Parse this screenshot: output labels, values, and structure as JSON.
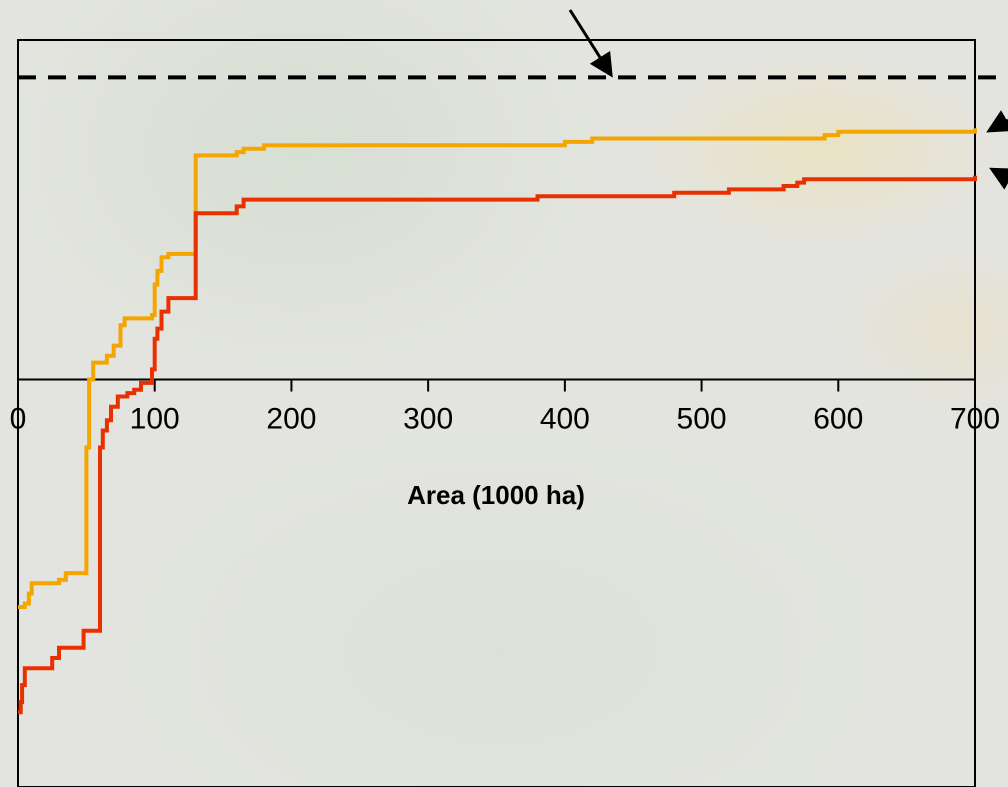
{
  "chart_data": {
    "type": "line",
    "step": true,
    "xlabel": "Area (1000 ha)",
    "ylabel": "",
    "title": "",
    "xlim": [
      0,
      700
    ],
    "ylim": [
      -1.2,
      1.0
    ],
    "x_ticks": [
      "0",
      "100",
      "200",
      "300",
      "400",
      "500",
      "600",
      "700"
    ],
    "grid": false,
    "reference_line": {
      "y": 0.89,
      "style": "dashed",
      "color": "#000000"
    },
    "series": [
      {
        "color": "#f5a500",
        "points": [
          [
            0,
            -0.67
          ],
          [
            5,
            -0.66
          ],
          [
            8,
            -0.63
          ],
          [
            10,
            -0.6
          ],
          [
            20,
            -0.6
          ],
          [
            30,
            -0.59
          ],
          [
            35,
            -0.57
          ],
          [
            50,
            -0.56
          ],
          [
            50,
            -0.2
          ],
          [
            52,
            0.0
          ],
          [
            55,
            0.05
          ],
          [
            58,
            0.05
          ],
          [
            65,
            0.07
          ],
          [
            70,
            0.1
          ],
          [
            75,
            0.13
          ],
          [
            75,
            0.16
          ],
          [
            78,
            0.18
          ],
          [
            90,
            0.18
          ],
          [
            95,
            0.18
          ],
          [
            98,
            0.19
          ],
          [
            100,
            0.21
          ],
          [
            100,
            0.28
          ],
          [
            102,
            0.32
          ],
          [
            105,
            0.36
          ],
          [
            110,
            0.36
          ],
          [
            110,
            0.37
          ],
          [
            118,
            0.37
          ],
          [
            130,
            0.37
          ],
          [
            130,
            0.66
          ],
          [
            155,
            0.66
          ],
          [
            160,
            0.67
          ],
          [
            165,
            0.68
          ],
          [
            175,
            0.68
          ],
          [
            180,
            0.69
          ],
          [
            215,
            0.69
          ],
          [
            400,
            0.7
          ],
          [
            420,
            0.71
          ],
          [
            480,
            0.71
          ],
          [
            590,
            0.72
          ],
          [
            600,
            0.73
          ],
          [
            700,
            0.74
          ]
        ]
      },
      {
        "color": "#e83000",
        "points": [
          [
            0,
            -0.98
          ],
          [
            2,
            -0.95
          ],
          [
            3,
            -0.9
          ],
          [
            5,
            -0.85
          ],
          [
            20,
            -0.85
          ],
          [
            25,
            -0.82
          ],
          [
            30,
            -0.79
          ],
          [
            40,
            -0.79
          ],
          [
            48,
            -0.74
          ],
          [
            50,
            -0.74
          ],
          [
            60,
            -0.74
          ],
          [
            60,
            -0.2
          ],
          [
            62,
            -0.15
          ],
          [
            65,
            -0.12
          ],
          [
            68,
            -0.08
          ],
          [
            73,
            -0.05
          ],
          [
            80,
            -0.04
          ],
          [
            85,
            -0.03
          ],
          [
            90,
            -0.01
          ],
          [
            95,
            -0.01
          ],
          [
            98,
            0.03
          ],
          [
            100,
            0.07
          ],
          [
            100,
            0.12
          ],
          [
            102,
            0.15
          ],
          [
            105,
            0.2
          ],
          [
            110,
            0.2
          ],
          [
            110,
            0.24
          ],
          [
            115,
            0.24
          ],
          [
            130,
            0.24
          ],
          [
            130,
            0.49
          ],
          [
            150,
            0.49
          ],
          [
            155,
            0.49
          ],
          [
            160,
            0.51
          ],
          [
            165,
            0.53
          ],
          [
            370,
            0.53
          ],
          [
            380,
            0.54
          ],
          [
            430,
            0.54
          ],
          [
            480,
            0.55
          ],
          [
            520,
            0.56
          ],
          [
            560,
            0.57
          ],
          [
            570,
            0.58
          ],
          [
            575,
            0.59
          ],
          [
            700,
            0.6
          ]
        ]
      }
    ],
    "arrows": 3
  }
}
